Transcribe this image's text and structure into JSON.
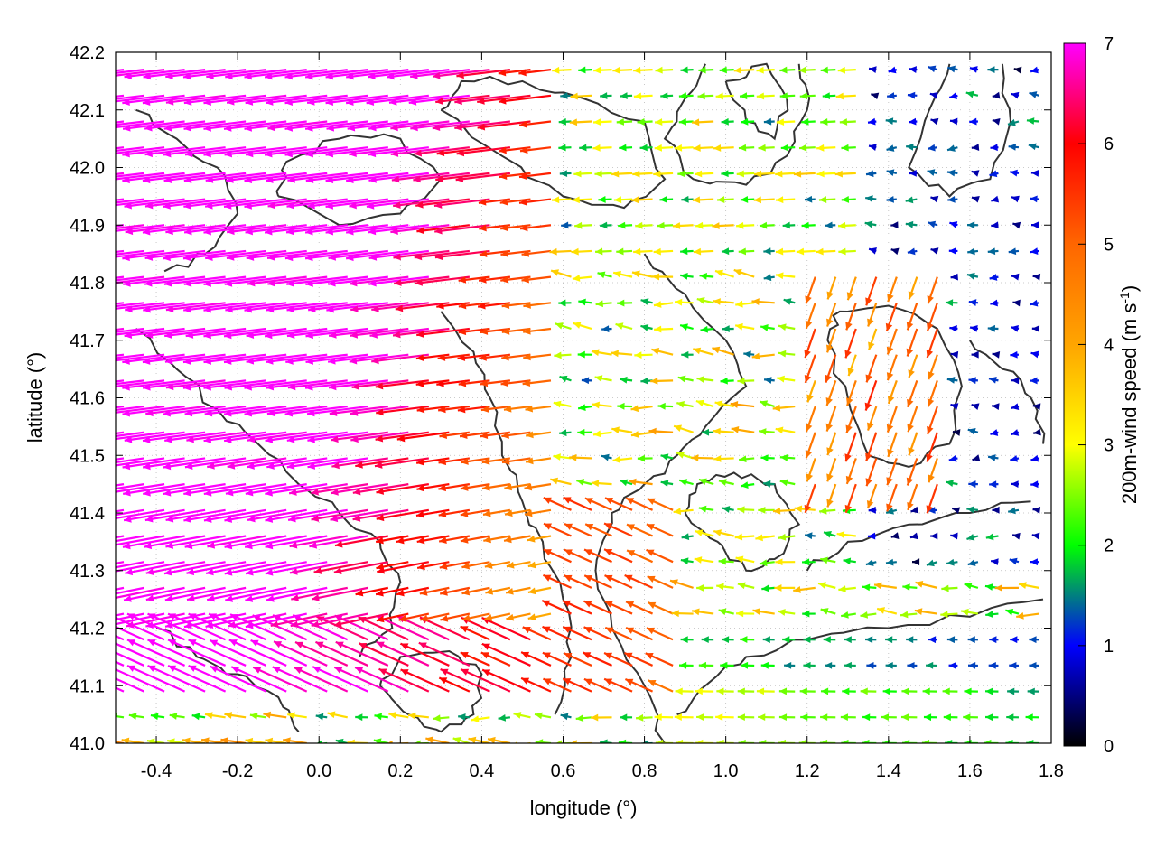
{
  "chart_data": {
    "type": "vector-field",
    "xlabel": "longitude (°)",
    "ylabel": "latitude (°)",
    "colorbar_label": "200m-wind speed (m s-1)",
    "colorbar_label_parts": {
      "main": "200m-wind speed (m s",
      "sup": "-1",
      "close": ")"
    },
    "xlim": [
      -0.5,
      1.8
    ],
    "ylim": [
      41.0,
      42.2
    ],
    "xticks": [
      {
        "value": -0.4,
        "label": "-0.4"
      },
      {
        "value": -0.2,
        "label": "-0.2"
      },
      {
        "value": 0.0,
        "label": "0.0"
      },
      {
        "value": 0.2,
        "label": "0.2"
      },
      {
        "value": 0.4,
        "label": "0.4"
      },
      {
        "value": 0.6,
        "label": "0.6"
      },
      {
        "value": 0.8,
        "label": "0.8"
      },
      {
        "value": 1.0,
        "label": "1.0"
      },
      {
        "value": 1.2,
        "label": "1.2"
      },
      {
        "value": 1.4,
        "label": "1.4"
      },
      {
        "value": 1.6,
        "label": "1.6"
      },
      {
        "value": 1.8,
        "label": "1.8"
      }
    ],
    "yticks": [
      {
        "value": 41.0,
        "label": "41.0"
      },
      {
        "value": 41.1,
        "label": "41.1"
      },
      {
        "value": 41.2,
        "label": "41.2"
      },
      {
        "value": 41.3,
        "label": "41.3"
      },
      {
        "value": 41.4,
        "label": "41.4"
      },
      {
        "value": 41.5,
        "label": "41.5"
      },
      {
        "value": 41.6,
        "label": "41.6"
      },
      {
        "value": 41.7,
        "label": "41.7"
      },
      {
        "value": 41.8,
        "label": "41.8"
      },
      {
        "value": 41.9,
        "label": "41.9"
      },
      {
        "value": 42.0,
        "label": "42.0"
      },
      {
        "value": 42.1,
        "label": "42.1"
      },
      {
        "value": 42.2,
        "label": "42.2"
      }
    ],
    "colorbar": {
      "range": [
        0,
        7
      ],
      "ticks": [
        {
          "value": 0,
          "label": "0"
        },
        {
          "value": 1,
          "label": "1"
        },
        {
          "value": 2,
          "label": "2"
        },
        {
          "value": 3,
          "label": "3"
        },
        {
          "value": 4,
          "label": "4"
        },
        {
          "value": 5,
          "label": "5"
        },
        {
          "value": 6,
          "label": "6"
        },
        {
          "value": 7,
          "label": "7"
        }
      ],
      "color_stops": [
        {
          "value": 0,
          "color": "#000000"
        },
        {
          "value": 1,
          "color": "#0000ff"
        },
        {
          "value": 2,
          "color": "#00ff00"
        },
        {
          "value": 3,
          "color": "#ffff00"
        },
        {
          "value": 4,
          "color": "#ffa500"
        },
        {
          "value": 5,
          "color": "#ff6600"
        },
        {
          "value": 6,
          "color": "#ff0000"
        },
        {
          "value": 7,
          "color": "#ff00ff"
        }
      ]
    },
    "grid": true,
    "contour_color": "#333333",
    "contours": [
      [
        [
          0.95,
          42.18
        ],
        [
          0.9,
          42.12
        ],
        [
          0.85,
          42.05
        ],
        [
          0.92,
          41.98
        ],
        [
          1.05,
          41.97
        ],
        [
          1.15,
          42.02
        ],
        [
          1.2,
          42.1
        ],
        [
          1.18,
          42.18
        ]
      ],
      [
        [
          1.55,
          42.18
        ],
        [
          1.5,
          42.1
        ],
        [
          1.45,
          42.0
        ],
        [
          1.55,
          41.95
        ],
        [
          1.65,
          41.98
        ],
        [
          1.7,
          42.08
        ],
        [
          1.68,
          42.18
        ]
      ],
      [
        [
          0.3,
          42.1
        ],
        [
          0.45,
          42.02
        ],
        [
          0.6,
          41.95
        ],
        [
          0.75,
          41.93
        ],
        [
          0.85,
          41.98
        ],
        [
          0.8,
          42.08
        ],
        [
          0.65,
          42.12
        ],
        [
          0.5,
          42.15
        ],
        [
          0.35,
          42.15
        ],
        [
          0.3,
          42.1
        ]
      ],
      [
        [
          -0.1,
          41.95
        ],
        [
          0.05,
          41.9
        ],
        [
          0.2,
          41.92
        ],
        [
          0.3,
          41.98
        ],
        [
          0.2,
          42.05
        ],
        [
          0.05,
          42.05
        ],
        [
          -0.08,
          42.01
        ],
        [
          -0.1,
          41.95
        ]
      ],
      [
        [
          0.8,
          41.85
        ],
        [
          0.9,
          41.78
        ],
        [
          1.0,
          41.7
        ],
        [
          1.05,
          41.62
        ],
        [
          0.95,
          41.55
        ],
        [
          0.88,
          41.5
        ],
        [
          0.8,
          41.45
        ],
        [
          0.72,
          41.4
        ],
        [
          0.68,
          41.3
        ],
        [
          0.72,
          41.2
        ],
        [
          0.8,
          41.1
        ],
        [
          0.85,
          41.0
        ]
      ],
      [
        [
          0.9,
          41.4
        ],
        [
          0.98,
          41.35
        ],
        [
          1.05,
          41.3
        ],
        [
          1.12,
          41.32
        ],
        [
          1.18,
          41.38
        ],
        [
          1.12,
          41.45
        ],
        [
          1.02,
          41.47
        ],
        [
          0.93,
          41.45
        ],
        [
          0.9,
          41.4
        ]
      ],
      [
        [
          1.25,
          41.7
        ],
        [
          1.3,
          41.6
        ],
        [
          1.35,
          41.5
        ],
        [
          1.45,
          41.48
        ],
        [
          1.55,
          41.52
        ],
        [
          1.58,
          41.62
        ],
        [
          1.52,
          41.72
        ],
        [
          1.4,
          41.76
        ],
        [
          1.28,
          41.75
        ],
        [
          1.25,
          41.7
        ]
      ],
      [
        [
          -0.45,
          41.72
        ],
        [
          -0.35,
          41.65
        ],
        [
          -0.25,
          41.58
        ],
        [
          -0.15,
          41.52
        ],
        [
          -0.05,
          41.45
        ],
        [
          0.05,
          41.4
        ],
        [
          0.15,
          41.35
        ],
        [
          0.2,
          41.28
        ],
        [
          0.18,
          41.2
        ],
        [
          0.1,
          41.15
        ]
      ],
      [
        [
          -0.4,
          41.2
        ],
        [
          -0.3,
          41.15
        ],
        [
          -0.2,
          41.12
        ],
        [
          -0.1,
          41.08
        ],
        [
          -0.05,
          41.02
        ]
      ],
      [
        [
          0.3,
          41.75
        ],
        [
          0.38,
          41.68
        ],
        [
          0.42,
          41.6
        ],
        [
          0.45,
          41.5
        ],
        [
          0.5,
          41.42
        ],
        [
          0.55,
          41.35
        ],
        [
          0.6,
          41.25
        ],
        [
          0.62,
          41.15
        ],
        [
          0.58,
          41.05
        ]
      ],
      [
        [
          0.88,
          41.05
        ],
        [
          0.95,
          41.1
        ],
        [
          1.05,
          41.15
        ],
        [
          1.2,
          41.18
        ],
        [
          1.4,
          41.2
        ],
        [
          1.6,
          41.22
        ],
        [
          1.78,
          41.25
        ]
      ],
      [
        [
          1.2,
          41.3
        ],
        [
          1.3,
          41.35
        ],
        [
          1.45,
          41.38
        ],
        [
          1.6,
          41.4
        ],
        [
          1.75,
          41.42
        ]
      ],
      [
        [
          -0.45,
          42.1
        ],
        [
          -0.35,
          42.05
        ],
        [
          -0.25,
          42.0
        ],
        [
          -0.2,
          41.92
        ],
        [
          -0.28,
          41.85
        ],
        [
          -0.38,
          41.82
        ]
      ],
      [
        [
          1.0,
          42.15
        ],
        [
          1.05,
          42.08
        ],
        [
          1.12,
          42.05
        ],
        [
          1.15,
          42.12
        ],
        [
          1.1,
          42.18
        ],
        [
          1.0,
          42.15
        ]
      ],
      [
        [
          1.6,
          41.7
        ],
        [
          1.68,
          41.65
        ],
        [
          1.75,
          41.6
        ],
        [
          1.78,
          41.52
        ]
      ],
      [
        [
          0.15,
          41.1
        ],
        [
          0.22,
          41.05
        ],
        [
          0.3,
          41.02
        ],
        [
          0.38,
          41.05
        ],
        [
          0.4,
          41.12
        ],
        [
          0.32,
          41.16
        ],
        [
          0.2,
          41.15
        ],
        [
          0.15,
          41.1
        ]
      ]
    ]
  }
}
